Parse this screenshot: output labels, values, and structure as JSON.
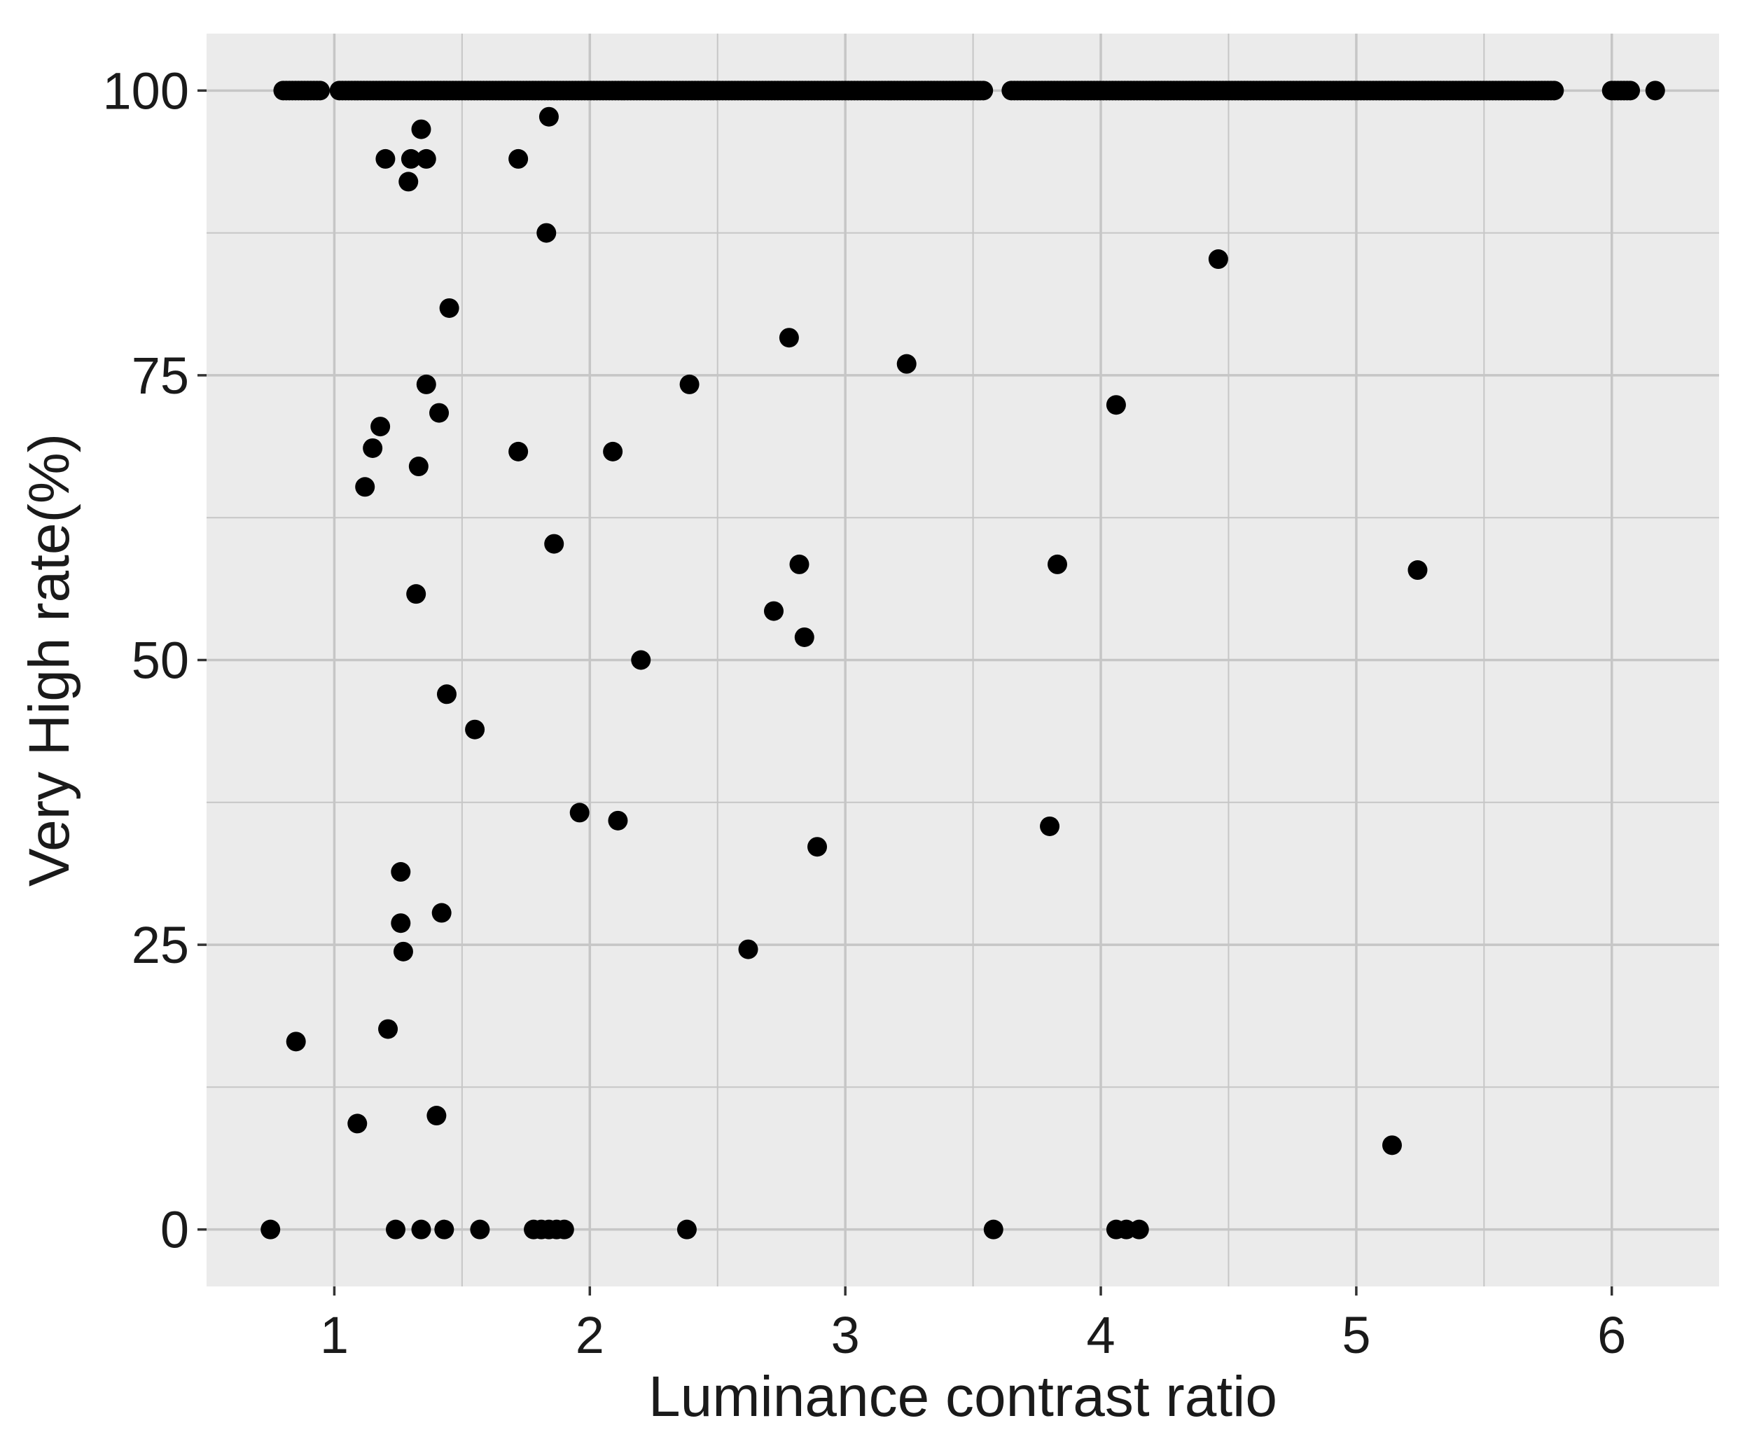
{
  "chart_data": {
    "type": "scatter",
    "title": "",
    "xlabel": "Luminance contrast ratio",
    "ylabel": "Very High rate(%)",
    "xlim": [
      0.5,
      6.42
    ],
    "ylim": [
      -5,
      105
    ],
    "x_ticks": [
      1,
      2,
      3,
      4,
      5,
      6
    ],
    "y_ticks": [
      0,
      25,
      50,
      75,
      100
    ],
    "x_tick_labels": [
      "1",
      "2",
      "3",
      "4",
      "5",
      "6"
    ],
    "y_tick_labels": [
      "0",
      "25",
      "50",
      "75",
      "100"
    ],
    "grid": true,
    "legend": "none",
    "colors": {
      "panel_background": "#ebebeb",
      "gridline": "#c6c6c6",
      "point": "#000000"
    },
    "points": [
      {
        "x": 0.75,
        "y": 0
      },
      {
        "x": 1.24,
        "y": 0
      },
      {
        "x": 1.34,
        "y": 0
      },
      {
        "x": 1.43,
        "y": 0
      },
      {
        "x": 1.57,
        "y": 0
      },
      {
        "x": 1.78,
        "y": 0
      },
      {
        "x": 1.81,
        "y": 0
      },
      {
        "x": 1.84,
        "y": 0
      },
      {
        "x": 1.87,
        "y": 0
      },
      {
        "x": 1.9,
        "y": 0
      },
      {
        "x": 2.38,
        "y": 0
      },
      {
        "x": 3.58,
        "y": 0
      },
      {
        "x": 4.06,
        "y": 0
      },
      {
        "x": 4.1,
        "y": 0
      },
      {
        "x": 4.15,
        "y": 0
      },
      {
        "x": 0.85,
        "y": 16.5
      },
      {
        "x": 1.09,
        "y": 9.3
      },
      {
        "x": 1.21,
        "y": 17.6
      },
      {
        "x": 1.26,
        "y": 31.4
      },
      {
        "x": 1.26,
        "y": 26.9
      },
      {
        "x": 1.27,
        "y": 24.4
      },
      {
        "x": 1.4,
        "y": 10
      },
      {
        "x": 1.42,
        "y": 27.8
      },
      {
        "x": 1.44,
        "y": 47
      },
      {
        "x": 1.55,
        "y": 43.9
      },
      {
        "x": 1.32,
        "y": 55.8
      },
      {
        "x": 1.12,
        "y": 65.2
      },
      {
        "x": 1.15,
        "y": 68.6
      },
      {
        "x": 1.18,
        "y": 70.5
      },
      {
        "x": 1.33,
        "y": 67
      },
      {
        "x": 1.36,
        "y": 74.2
      },
      {
        "x": 1.41,
        "y": 71.7
      },
      {
        "x": 1.45,
        "y": 80.9
      },
      {
        "x": 1.2,
        "y": 94
      },
      {
        "x": 1.29,
        "y": 92
      },
      {
        "x": 1.3,
        "y": 94
      },
      {
        "x": 1.34,
        "y": 96.6
      },
      {
        "x": 1.36,
        "y": 94
      },
      {
        "x": 1.72,
        "y": 94
      },
      {
        "x": 1.84,
        "y": 97.7
      },
      {
        "x": 1.83,
        "y": 87.5
      },
      {
        "x": 1.72,
        "y": 68.3
      },
      {
        "x": 1.86,
        "y": 60.2
      },
      {
        "x": 1.96,
        "y": 36.6
      },
      {
        "x": 2.09,
        "y": 68.3
      },
      {
        "x": 2.11,
        "y": 35.9
      },
      {
        "x": 2.2,
        "y": 50
      },
      {
        "x": 2.39,
        "y": 74.2
      },
      {
        "x": 2.62,
        "y": 24.6
      },
      {
        "x": 2.72,
        "y": 54.3
      },
      {
        "x": 2.78,
        "y": 78.3
      },
      {
        "x": 2.82,
        "y": 58.4
      },
      {
        "x": 2.84,
        "y": 52
      },
      {
        "x": 2.89,
        "y": 33.6
      },
      {
        "x": 3.24,
        "y": 76
      },
      {
        "x": 3.8,
        "y": 35.4
      },
      {
        "x": 3.83,
        "y": 58.4
      },
      {
        "x": 4.06,
        "y": 72.4
      },
      {
        "x": 4.46,
        "y": 85.2
      },
      {
        "x": 5.14,
        "y": 7.4
      },
      {
        "x": 5.24,
        "y": 57.9
      }
    ],
    "point_runs": [
      {
        "y": 100,
        "x_from": 0.8,
        "x_to": 0.95
      },
      {
        "y": 100,
        "x_from": 1.02,
        "x_to": 3.55
      },
      {
        "y": 100,
        "x_from": 3.65,
        "x_to": 5.78
      },
      {
        "y": 100,
        "x_from": 6.0,
        "x_to": 6.08
      },
      {
        "y": 100,
        "x_from": 6.17,
        "x_to": 6.17
      }
    ]
  }
}
